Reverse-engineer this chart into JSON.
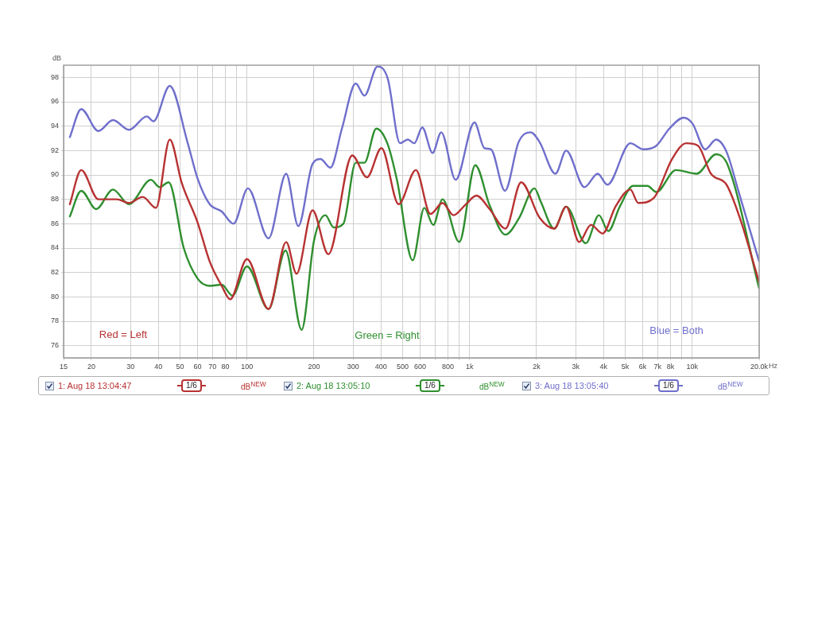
{
  "chart_data": {
    "type": "line",
    "ylabel": "dB",
    "xlabel": "Hz",
    "log": "x",
    "grid": true,
    "legend": "bottom",
    "marker": "none",
    "line_style": "solid",
    "xlim": [
      15,
      20000
    ],
    "ylim": [
      75,
      99
    ],
    "xticks": [
      15,
      20,
      30,
      40,
      50,
      60,
      70,
      80,
      {
        "value": 90,
        "label": null
      },
      100,
      200,
      300,
      400,
      500,
      600,
      {
        "value": 700,
        "label": null
      },
      800,
      {
        "value": 900,
        "label": null
      },
      {
        "value": 1000,
        "label": "1k"
      },
      {
        "value": 2000,
        "label": "2k"
      },
      {
        "value": 3000,
        "label": "3k"
      },
      {
        "value": 4000,
        "label": "4k"
      },
      {
        "value": 5000,
        "label": "5k"
      },
      {
        "value": 6000,
        "label": "6k"
      },
      {
        "value": 7000,
        "label": "7k"
      },
      {
        "value": 8000,
        "label": "8k"
      },
      {
        "value": 9000,
        "label": null
      },
      {
        "value": 10000,
        "label": "10k"
      },
      {
        "value": 20000,
        "label": "20.0k"
      }
    ],
    "yticks": [
      76,
      78,
      80,
      82,
      84,
      86,
      88,
      90,
      92,
      94,
      96,
      98
    ],
    "annotations": [
      "Red = Left",
      "Green = Right",
      "Blue = Both",
      "1/6",
      "dB$^{NEW}$",
      "1/6",
      "dB$^{NEW}$",
      "1/6",
      "dB$^{NEW}$"
    ],
    "series": [
      {
        "name": "1: Aug 18 13:04:47",
        "color": "#b83232",
        "x": [
          16,
          18,
          21.5,
          26,
          29.5,
          34,
          39,
          45,
          51,
          60,
          68,
          77,
          84,
          100,
          125,
          150,
          167,
          197,
          232,
          297,
          346,
          402,
          480,
          574,
          667,
          756,
          847,
          963,
          1073,
          1231,
          1450,
          1705,
          2063,
          2400,
          2716,
          3107,
          3508,
          3963,
          4526,
          5277,
          5730,
          6715,
          8120,
          9405,
          10620,
          12150,
          14270,
          16360,
          20000
        ],
        "values": [
          87.6,
          90.4,
          88.0,
          88.0,
          87.7,
          88.2,
          87.3,
          92.9,
          89.3,
          86.1,
          82.9,
          80.9,
          79.8,
          83.1,
          79.0,
          84.5,
          81.9,
          87.1,
          83.5,
          91.6,
          89.8,
          92.2,
          87.6,
          90.4,
          86.8,
          87.7,
          86.7,
          87.6,
          88.3,
          87.2,
          85.6,
          89.4,
          86.5,
          85.6,
          87.4,
          84.5,
          85.9,
          85.2,
          87.4,
          88.8,
          87.7,
          88.1,
          91.3,
          92.6,
          92.4,
          90.1,
          89.2,
          86.5,
          81.2
        ]
      },
      {
        "name": "2: Aug 18 13:05:10",
        "color": "#2f8f2f",
        "x": [
          16,
          18,
          21,
          25,
          29.5,
          37,
          40.5,
          44.5,
          52,
          60,
          68,
          77,
          86,
          100,
          125,
          149,
          176,
          200,
          225,
          245,
          271,
          308,
          337,
          381,
          429,
          473,
          555,
          626,
          687,
          756,
          899,
          1061,
          1231,
          1450,
          1662,
          1958,
          2090,
          2400,
          2716,
          3328,
          3813,
          4200,
          4730,
          5430,
          6290,
          6906,
          8450,
          10480,
          12810,
          14460,
          20000
        ],
        "values": [
          86.6,
          88.7,
          87.2,
          88.8,
          87.6,
          89.6,
          89.0,
          89.4,
          84.0,
          81.5,
          80.9,
          81.0,
          80.1,
          82.5,
          79.0,
          83.8,
          77.3,
          84.6,
          86.7,
          85.7,
          86.0,
          91.0,
          91.0,
          93.8,
          92.5,
          89.5,
          83.0,
          87.3,
          85.9,
          88.0,
          84.5,
          90.8,
          87.5,
          85.1,
          86.4,
          88.9,
          87.8,
          85.6,
          87.4,
          84.4,
          86.7,
          85.4,
          87.4,
          89.1,
          89.1,
          88.6,
          90.4,
          90.1,
          91.7,
          90.8,
          80.7
        ]
      },
      {
        "name": "3: Aug 18 13:05:40",
        "color": "#6f6fcc",
        "x": [
          16,
          18,
          21.5,
          25,
          29.5,
          35.5,
          38,
          45,
          54,
          60,
          68,
          77,
          87,
          101,
          125,
          150,
          170,
          197,
          214,
          237,
          267,
          308,
          337,
          386,
          429,
          487,
          528,
          565,
          613,
          682,
          746,
          866,
          1052,
          1166,
          1248,
          1442,
          1662,
          1880,
          2063,
          2432,
          2716,
          3283,
          3763,
          4160,
          5277,
          6037,
          6906,
          7900,
          9155,
          10050,
          11440,
          12810,
          14270,
          16130,
          20000
        ],
        "values": [
          93.1,
          95.4,
          93.6,
          94.5,
          93.7,
          94.8,
          94.4,
          97.3,
          92.7,
          89.7,
          87.6,
          87.0,
          86.0,
          88.9,
          84.8,
          90.1,
          85.8,
          90.9,
          91.3,
          90.6,
          93.8,
          97.5,
          96.5,
          98.9,
          97.9,
          92.6,
          92.9,
          92.6,
          93.9,
          91.8,
          93.5,
          89.6,
          94.3,
          92.2,
          92.1,
          88.7,
          92.7,
          93.5,
          92.7,
          90.1,
          92.0,
          89.0,
          90.1,
          89.2,
          92.6,
          92.1,
          92.4,
          93.8,
          94.7,
          94.2,
          92.1,
          92.9,
          91.9,
          88.7,
          82.9
        ]
      }
    ]
  }
}
